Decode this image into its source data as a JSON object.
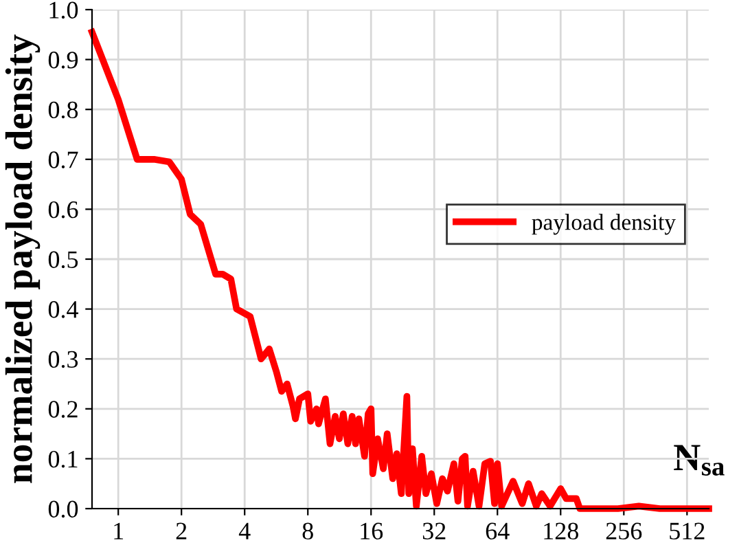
{
  "chart_data": {
    "type": "line",
    "xlabel": "N$_{sa}$",
    "ylabel": "normalized payload density",
    "legend": "right",
    "grid": true,
    "log": "x",
    "xlim": [
      0.75,
      650
    ],
    "xticks": [
      1,
      2,
      4,
      8,
      16,
      32,
      64,
      128,
      256,
      512
    ],
    "ylim": [
      0,
      1.0
    ],
    "yticks": [
      {
        "value": 0,
        "label": "0.0"
      },
      0.1,
      0.2,
      0.3,
      0.4,
      0.5,
      0.6,
      0.7,
      0.8,
      0.9,
      {
        "value": 1.0,
        "label": "1.0"
      }
    ],
    "series": [
      {
        "name": "payload density",
        "color": "#ff0000",
        "x": [
          0.75,
          1.0,
          1.23,
          1.48,
          1.75,
          2.0,
          2.2,
          2.47,
          2.91,
          3.14,
          3.44,
          3.66,
          4.25,
          4.79,
          5.24,
          5.66,
          6.0,
          6.37,
          6.8,
          6.98,
          7.3,
          8,
          8.25,
          8.8,
          9.0,
          9.7,
          10.2,
          10.8,
          11.3,
          11.8,
          12.4,
          13.0,
          13.5,
          14.0,
          14.9,
          15.5,
          16,
          16.3,
          17.2,
          18.3,
          19.1,
          20.3,
          21.2,
          22.3,
          23.0,
          23.7,
          24.2,
          25.2,
          26.3,
          27.9,
          29.2,
          31,
          32.9,
          35,
          37,
          39.7,
          41.5,
          43.5,
          44.9,
          46.1,
          49.0,
          52.3,
          55.7,
          59.3,
          62.0,
          64,
          67,
          76,
          84,
          90,
          98,
          104,
          114,
          128,
          136,
          152,
          158,
          240,
          302,
          380,
          650
        ],
        "values": [
          0.955,
          0.82,
          0.7,
          0.7,
          0.695,
          0.66,
          0.59,
          0.57,
          0.47,
          0.47,
          0.46,
          0.4,
          0.385,
          0.3,
          0.32,
          0.275,
          0.235,
          0.25,
          0.205,
          0.18,
          0.22,
          0.23,
          0.175,
          0.2,
          0.17,
          0.22,
          0.13,
          0.185,
          0.14,
          0.19,
          0.13,
          0.185,
          0.13,
          0.18,
          0.105,
          0.19,
          0.2,
          0.07,
          0.14,
          0.08,
          0.15,
          0.06,
          0.11,
          0.03,
          0.13,
          0.225,
          0.03,
          0.12,
          0.005,
          0.105,
          0.03,
          0.07,
          0.01,
          0.06,
          0.035,
          0.09,
          0.015,
          0.1,
          0.105,
          0.005,
          0.075,
          0.005,
          0.09,
          0.095,
          0.01,
          0.09,
          0.005,
          0.055,
          0.01,
          0.05,
          0.005,
          0.03,
          0.005,
          0.04,
          0.02,
          0.02,
          0.0,
          0.0,
          0.005,
          0.0,
          0.0
        ]
      }
    ]
  }
}
